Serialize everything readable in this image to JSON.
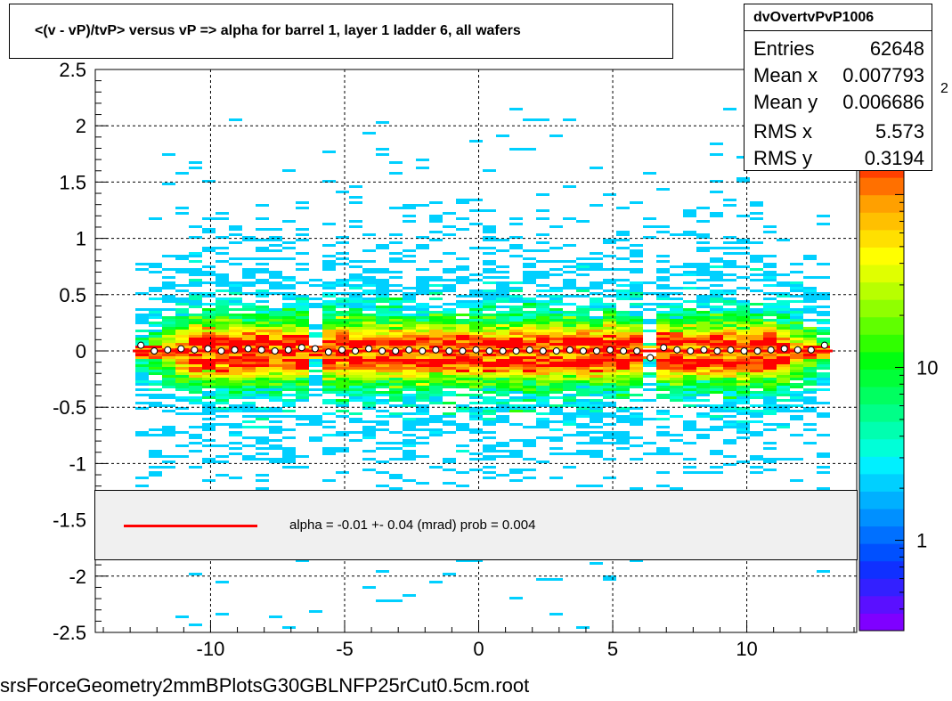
{
  "title": "<(v - vP)/tvP> versus   vP => alpha for barrel 1, layer 1 ladder 6, all wafers",
  "stats": {
    "name": "dvOvertvPvP1006",
    "rows": [
      {
        "label": "Entries",
        "value": "62648"
      },
      {
        "label": "Mean x",
        "value": "0.007793"
      },
      {
        "label": "Mean y",
        "value": "0.006686"
      },
      {
        "label": "RMS x",
        "value": "5.573"
      },
      {
        "label": "RMS y",
        "value": "0.3194"
      }
    ]
  },
  "fit": {
    "text": "alpha =    -0.01 +-   0.04 (mrad) prob = 0.004",
    "line_color": "#ff0000"
  },
  "filename": "srsForceGeometry2mmBPlotsG30GBLNFP25rCut0.5cm.root",
  "chart_data": {
    "type": "heatmap",
    "title": "<(v - vP)/tvP> versus   vP => alpha for barrel 1, layer 1 ladder 6, all wafers",
    "xlabel": "",
    "ylabel": "",
    "xlim": [
      -14.3,
      14.1
    ],
    "ylim": [
      -2.5,
      2.5
    ],
    "x_ticks": [
      -10,
      -5,
      0,
      5,
      10
    ],
    "x_tick_labels": [
      "-10",
      "-5",
      "0",
      "5",
      "10"
    ],
    "y_ticks": [
      -2.5,
      -2,
      -1.5,
      -1,
      -0.5,
      0,
      0.5,
      1,
      1.5,
      2,
      2.5
    ],
    "y_tick_labels": [
      "-2.5",
      "-2",
      "-1.5",
      "-1",
      "-0.5",
      "0",
      "0.5",
      "1",
      "1.5",
      "2",
      "2.5"
    ],
    "grid": true,
    "colorbar": {
      "scale": "log",
      "min": 0.3,
      "max": 200,
      "tick_values": [
        1,
        10
      ],
      "tick_labels": [
        "1",
        "10"
      ],
      "exponent_label": "2",
      "colors": [
        "#7f00ff",
        "#5a10ff",
        "#3320ff",
        "#1030ff",
        "#0050ff",
        "#0070ff",
        "#0090ff",
        "#00b0ff",
        "#00d0ff",
        "#00f0ff",
        "#00ffd8",
        "#00ffb0",
        "#00ff88",
        "#00ff60",
        "#00ff38",
        "#00ff10",
        "#30ff00",
        "#60ff00",
        "#90ff00",
        "#b8ff00",
        "#e0ff00",
        "#ffff00",
        "#ffe000",
        "#ffc000",
        "#ffa000",
        "#ff7000",
        "#ff4000",
        "#ff0000"
      ]
    },
    "profile": {
      "x": [
        -12.6,
        -12.1,
        -11.6,
        -11.1,
        -10.6,
        -10.1,
        -9.6,
        -9.1,
        -8.6,
        -8.1,
        -7.6,
        -7.1,
        -6.6,
        -6.1,
        -5.6,
        -5.1,
        -4.6,
        -4.1,
        -3.6,
        -3.1,
        -2.6,
        -2.1,
        -1.6,
        -1.1,
        -0.6,
        -0.1,
        0.4,
        0.9,
        1.4,
        1.9,
        2.4,
        2.9,
        3.4,
        3.9,
        4.4,
        4.9,
        5.4,
        5.9,
        6.4,
        6.9,
        7.4,
        7.9,
        8.4,
        8.9,
        9.4,
        9.9,
        10.4,
        10.9,
        11.4,
        11.9,
        12.4,
        12.9
      ],
      "y": [
        0.05,
        0.0,
        0.01,
        0.02,
        0.01,
        0.02,
        0.0,
        0.01,
        0.02,
        0.01,
        0.0,
        0.01,
        0.03,
        0.02,
        -0.01,
        0.01,
        0.0,
        0.02,
        0.0,
        0.0,
        0.01,
        0.0,
        0.01,
        0.0,
        0.0,
        0.01,
        0.0,
        0.0,
        0.0,
        0.01,
        0.0,
        0.0,
        0.01,
        0.0,
        0.0,
        0.01,
        0.0,
        0.0,
        -0.06,
        0.03,
        0.01,
        0.0,
        0.01,
        0.0,
        0.01,
        0.0,
        0.0,
        0.01,
        0.02,
        0.01,
        0.01,
        0.05
      ]
    },
    "fit_line": {
      "slope_mrad": -0.01,
      "intercept": 0.0
    }
  }
}
